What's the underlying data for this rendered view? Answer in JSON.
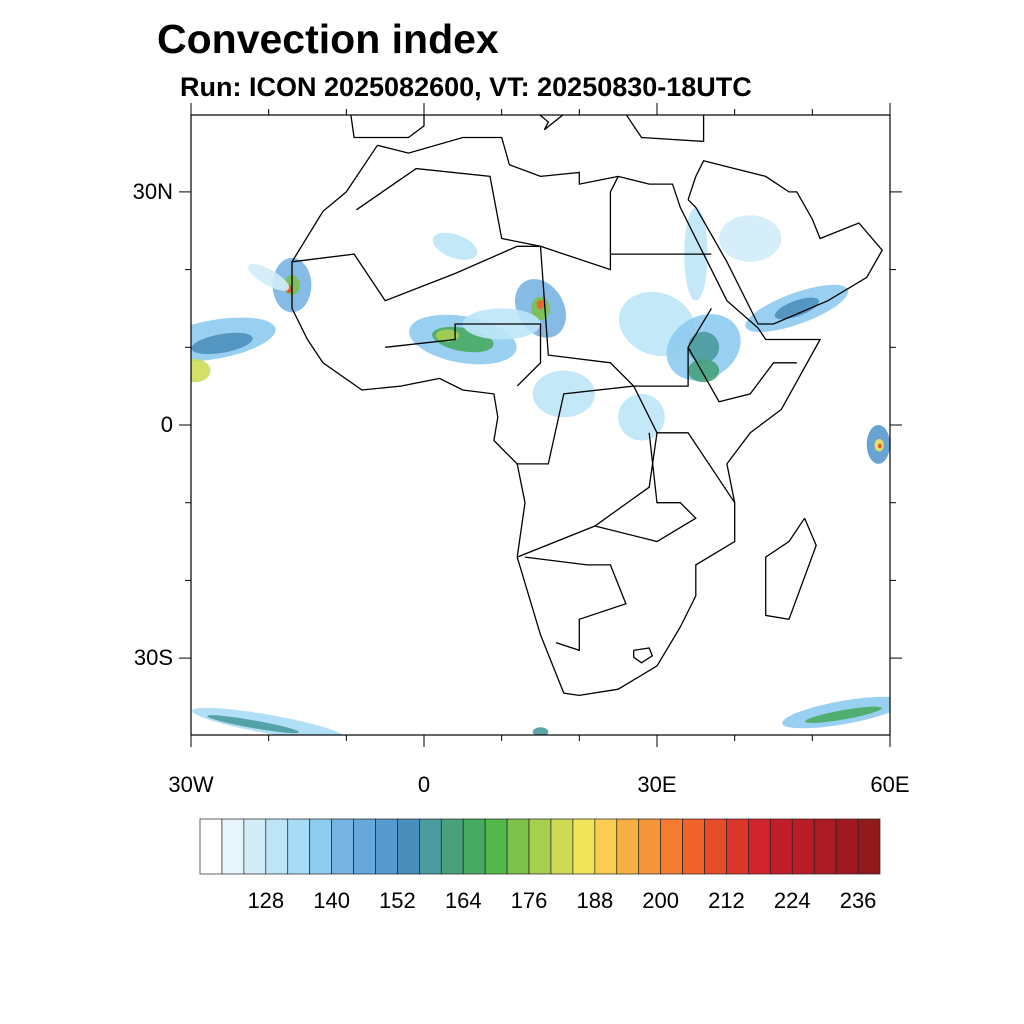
{
  "title": "Convection index",
  "subtitle": "Run: ICON 2025082600,  VT: 20250830-18UTC",
  "map": {
    "lon_range": [
      -30,
      60
    ],
    "lat_range": [
      -40,
      40
    ],
    "y_ticks": [
      {
        "lat": 30,
        "label": "30N"
      },
      {
        "lat": 0,
        "label": "0"
      },
      {
        "lat": -30,
        "label": "30S"
      }
    ],
    "x_ticks": [
      {
        "lon": -30,
        "label": "30W"
      },
      {
        "lon": 0,
        "label": "0"
      },
      {
        "lon": 30,
        "label": "30E"
      },
      {
        "lon": 60,
        "label": "60E"
      }
    ]
  },
  "colorbar": {
    "labels": [
      "128",
      "140",
      "152",
      "164",
      "176",
      "188",
      "200",
      "212",
      "224",
      "236"
    ],
    "colors": [
      "#ffffff",
      "#e8f5fc",
      "#d2ecf8",
      "#bde5f7",
      "#a8dcf6",
      "#8ecbef",
      "#78b4e2",
      "#67a8da",
      "#5899cf",
      "#4a8fbb",
      "#4a9b9e",
      "#47a17a",
      "#48aa62",
      "#55b84a",
      "#7cc14b",
      "#a6cf50",
      "#cedc55",
      "#f2e45a",
      "#f9cd50",
      "#f6b042",
      "#f6963a",
      "#f57c30",
      "#f0622a",
      "#e54c28",
      "#dc352a",
      "#d0232b",
      "#c21e2a",
      "#b81d27",
      "#ab1b23",
      "#a0191f",
      "#921a1d"
    ]
  }
}
